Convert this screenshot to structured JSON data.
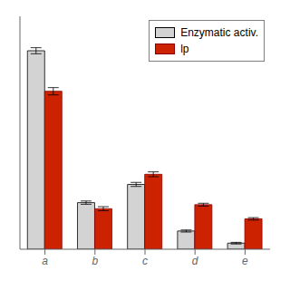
{
  "chart_data": {
    "type": "bar",
    "categories": [
      "a",
      "b",
      "c",
      "d",
      "e"
    ],
    "series": [
      {
        "name": "Enzymatic activ.",
        "color": "#d3d3d3",
        "values": [
          9.8,
          2.3,
          3.2,
          0.9,
          0.3
        ],
        "errors": [
          0.15,
          0.08,
          0.1,
          0.05,
          0.04
        ]
      },
      {
        "name": "lp",
        "color": "#cc2200",
        "values": [
          7.8,
          2.0,
          3.7,
          2.2,
          1.5
        ],
        "errors": [
          0.18,
          0.1,
          0.12,
          0.07,
          0.06
        ]
      }
    ],
    "ylim": [
      0,
      11.5
    ],
    "legend": "upper right",
    "tick_labels": "x",
    "grid": false
  }
}
